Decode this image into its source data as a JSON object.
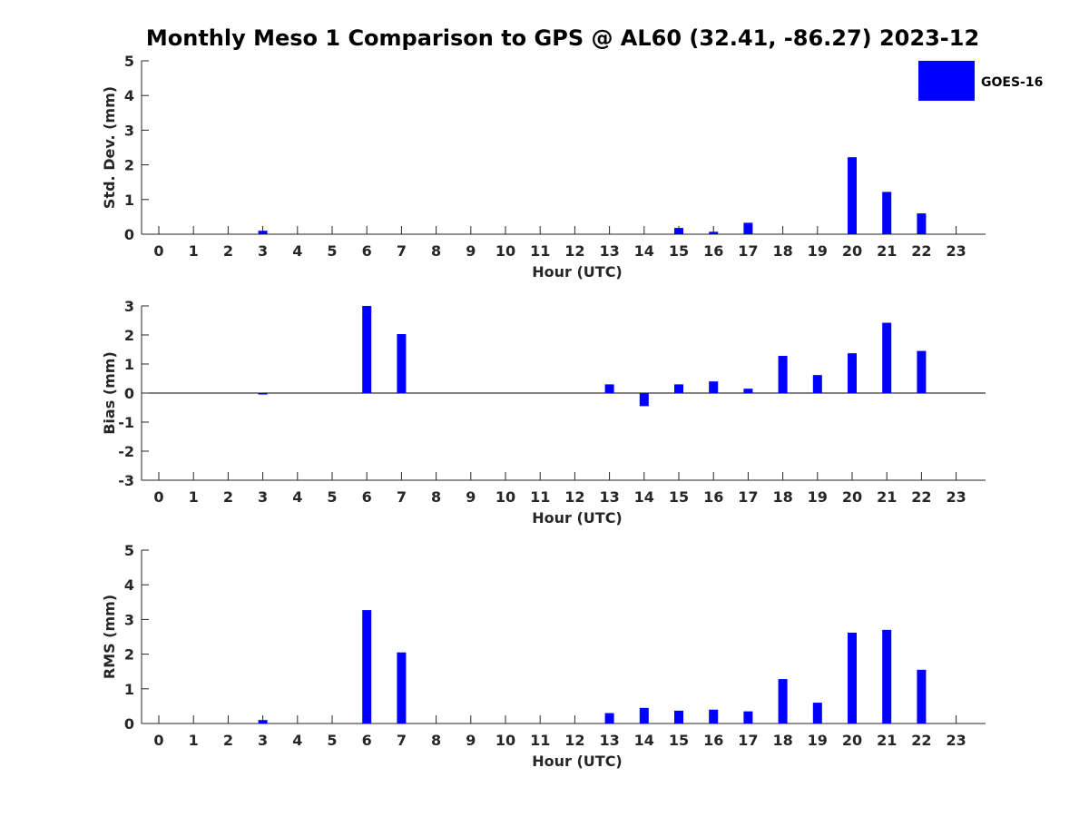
{
  "title": "Monthly Meso 1 Comparison to GPS @ AL60 (32.41, -86.27) 2023-12",
  "legend": {
    "label": "GOES-16",
    "color": "#0000ff"
  },
  "bar_color": "#0000ff",
  "chart_data": [
    {
      "type": "bar",
      "categories": [
        "0",
        "1",
        "2",
        "3",
        "4",
        "5",
        "6",
        "7",
        "8",
        "9",
        "10",
        "11",
        "12",
        "13",
        "14",
        "15",
        "16",
        "17",
        "18",
        "19",
        "20",
        "21",
        "22",
        "23"
      ],
      "values": [
        null,
        null,
        null,
        0.1,
        null,
        null,
        null,
        null,
        null,
        null,
        null,
        null,
        null,
        null,
        null,
        0.18,
        0.07,
        0.33,
        null,
        null,
        2.22,
        1.22,
        0.6,
        null
      ],
      "xlabel": "Hour (UTC)",
      "ylabel": "Std. Dev. (mm)",
      "ylim": [
        0,
        5
      ],
      "yticks": [
        0,
        1,
        2,
        3,
        4,
        5
      ],
      "zero_line": false
    },
    {
      "type": "bar",
      "categories": [
        "0",
        "1",
        "2",
        "3",
        "4",
        "5",
        "6",
        "7",
        "8",
        "9",
        "10",
        "11",
        "12",
        "13",
        "14",
        "15",
        "16",
        "17",
        "18",
        "19",
        "20",
        "21",
        "22",
        "23"
      ],
      "values": [
        null,
        null,
        null,
        -0.05,
        null,
        null,
        3.0,
        2.03,
        null,
        null,
        null,
        null,
        null,
        0.3,
        -0.45,
        0.3,
        0.4,
        0.15,
        1.28,
        0.62,
        1.37,
        2.42,
        1.45,
        null
      ],
      "xlabel": "Hour (UTC)",
      "ylabel": "Bias (mm)",
      "ylim": [
        -3,
        3
      ],
      "yticks": [
        -3,
        -2,
        -1,
        0,
        1,
        2,
        3
      ],
      "zero_line": true
    },
    {
      "type": "bar",
      "categories": [
        "0",
        "1",
        "2",
        "3",
        "4",
        "5",
        "6",
        "7",
        "8",
        "9",
        "10",
        "11",
        "12",
        "13",
        "14",
        "15",
        "16",
        "17",
        "18",
        "19",
        "20",
        "21",
        "22",
        "23"
      ],
      "values": [
        null,
        null,
        null,
        0.1,
        null,
        null,
        3.27,
        2.05,
        null,
        null,
        null,
        null,
        null,
        0.3,
        0.45,
        0.37,
        0.4,
        0.35,
        1.28,
        0.6,
        2.62,
        2.7,
        1.55,
        null
      ],
      "xlabel": "Hour (UTC)",
      "ylabel": "RMS (mm)",
      "ylim": [
        0,
        5
      ],
      "yticks": [
        0,
        1,
        2,
        3,
        4,
        5
      ],
      "zero_line": false
    }
  ]
}
